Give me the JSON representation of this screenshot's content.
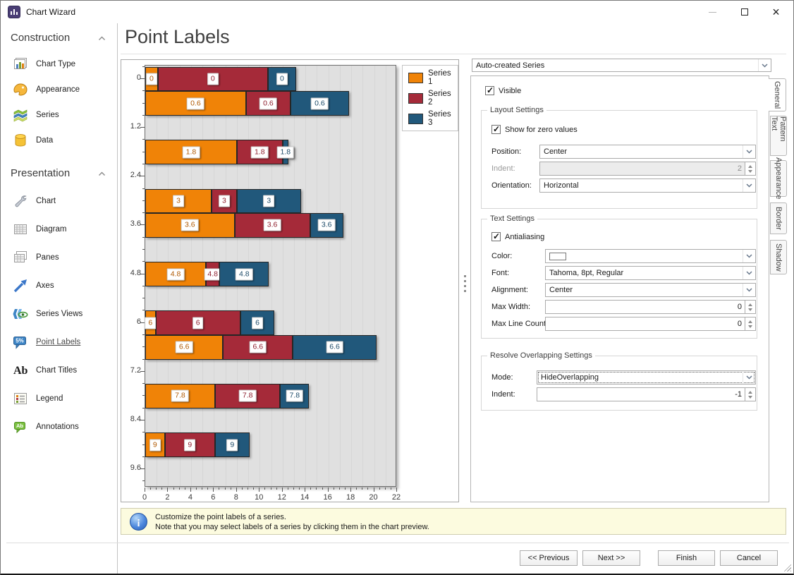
{
  "window": {
    "title": "Chart Wizard"
  },
  "sidebar": {
    "sections": [
      {
        "label": "Construction",
        "items": [
          {
            "label": "Chart Type",
            "icon": "chart-type-icon"
          },
          {
            "label": "Appearance",
            "icon": "appearance-icon"
          },
          {
            "label": "Series",
            "icon": "series-icon"
          },
          {
            "label": "Data",
            "icon": "data-icon"
          }
        ]
      },
      {
        "label": "Presentation",
        "items": [
          {
            "label": "Chart",
            "icon": "chart-icon"
          },
          {
            "label": "Diagram",
            "icon": "diagram-icon"
          },
          {
            "label": "Panes",
            "icon": "panes-icon"
          },
          {
            "label": "Axes",
            "icon": "axes-icon"
          },
          {
            "label": "Series Views",
            "icon": "series-views-icon"
          },
          {
            "label": "Point Labels",
            "icon": "point-labels-icon",
            "selected": true
          },
          {
            "label": "Chart Titles",
            "icon": "chart-titles-icon"
          },
          {
            "label": "Legend",
            "icon": "legend-icon"
          },
          {
            "label": "Annotations",
            "icon": "annotations-icon"
          }
        ]
      }
    ]
  },
  "main": {
    "title": "Point Labels"
  },
  "chart_data": {
    "type": "bar",
    "orientation": "horizontal-stacked",
    "categories": [
      0,
      0.6,
      1.8,
      3,
      3.6,
      4.8,
      6,
      6.6,
      7.8,
      9
    ],
    "series": [
      {
        "name": "Series 1",
        "color": "#F08307",
        "label_color": "#b05a04",
        "values": [
          1.1,
          8.8,
          8.0,
          5.8,
          7.8,
          5.3,
          0.9,
          6.8,
          6.1,
          1.7
        ]
      },
      {
        "name": "Series 2",
        "color": "#A52A39",
        "label_color": "#8e1f2e",
        "values": [
          9.6,
          3.9,
          4.0,
          2.2,
          6.6,
          1.2,
          7.4,
          6.1,
          5.7,
          4.4
        ]
      },
      {
        "name": "Series 3",
        "color": "#21587B",
        "label_color": "#1c4a68",
        "values": [
          2.5,
          5.1,
          0.5,
          5.6,
          2.9,
          4.3,
          3.0,
          7.3,
          2.5,
          3.0
        ]
      }
    ],
    "point_labels": "category-value",
    "x_ticks": [
      0,
      2,
      4,
      6,
      8,
      10,
      12,
      14,
      16,
      18,
      20,
      22
    ],
    "y_ticks": [
      0,
      1.2,
      2.4,
      3.6,
      4.8,
      6,
      7.2,
      8.4,
      9.6
    ],
    "xlim": [
      0,
      22
    ],
    "ylim": [
      -0.33,
      10.05
    ],
    "bar_thickness": 0.6,
    "plot_bg": "#e0e0e0",
    "legend_position": "top-right"
  },
  "settings": {
    "series_selector": "Auto-created Series",
    "tabs": [
      {
        "label": "General",
        "selected": true
      },
      {
        "label": "Text Pattern"
      },
      {
        "label": "Appearance"
      },
      {
        "label": "Border"
      },
      {
        "label": "Shadow"
      }
    ],
    "visible": {
      "label": "Visible",
      "checked": true
    },
    "layout": {
      "title": "Layout Settings",
      "show_zero": {
        "label": "Show for zero values",
        "checked": true
      },
      "position": {
        "label": "Position:",
        "value": "Center"
      },
      "indent": {
        "label": "Indent:",
        "value": "2",
        "disabled": true
      },
      "orientation": {
        "label": "Orientation:",
        "value": "Horizontal"
      }
    },
    "text": {
      "title": "Text Settings",
      "antialiasing": {
        "label": "Antialiasing",
        "checked": true
      },
      "color": {
        "label": "Color:",
        "value": ""
      },
      "font": {
        "label": "Font:",
        "value": "Tahoma, 8pt, Regular"
      },
      "alignment": {
        "label": "Alignment:",
        "value": "Center"
      },
      "max_width": {
        "label": "Max Width:",
        "value": "0"
      },
      "max_line_count": {
        "label": "Max Line Count:",
        "value": "0"
      }
    },
    "overlap": {
      "title": "Resolve Overlapping Settings",
      "mode": {
        "label": "Mode:",
        "value": "HideOverlapping",
        "focused": true
      },
      "indent": {
        "label": "Indent:",
        "value": "-1"
      }
    }
  },
  "info": {
    "line1": "Customize the point labels of a series.",
    "line2": "Note that you may select labels of a series by clicking them in the chart preview."
  },
  "footer": {
    "previous": "<< Previous",
    "next": "Next >>",
    "finish": "Finish",
    "cancel": "Cancel"
  }
}
